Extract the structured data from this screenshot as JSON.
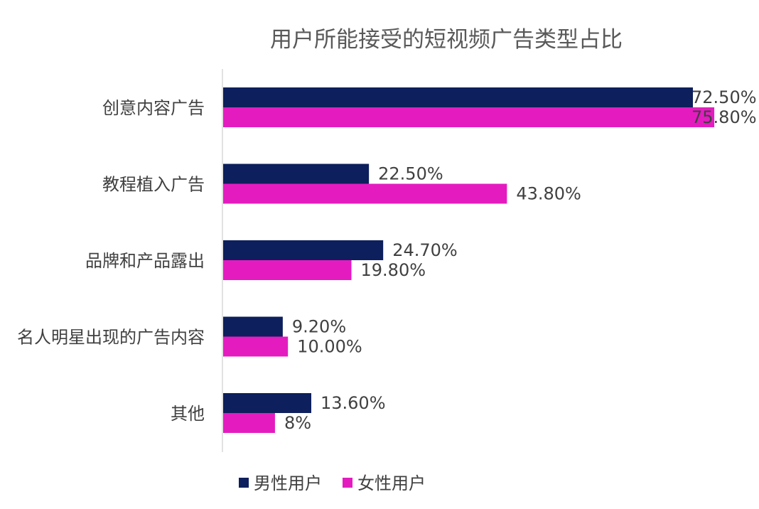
{
  "chart_data": {
    "type": "bar",
    "orientation": "horizontal",
    "title": "用户所能接受的短视频广告类型占比",
    "categories": [
      "创意内容广告",
      "教程植入广告",
      "品牌和产品露出",
      "名人明星出现的广告内容",
      "其他"
    ],
    "series": [
      {
        "name": "男性用户",
        "color": "#0d1f5c",
        "values": [
          72.5,
          22.5,
          24.7,
          9.2,
          13.6
        ],
        "labels": [
          "72.50%",
          "22.50%",
          "24.70%",
          "9.20%",
          "13.60%"
        ]
      },
      {
        "name": "女性用户",
        "color": "#e41cc0",
        "values": [
          75.8,
          43.8,
          19.8,
          10.0,
          8
        ],
        "labels": [
          "75.80%",
          "43.80%",
          "19.80%",
          "10.00%",
          "8%"
        ]
      }
    ],
    "xlim": [
      0,
      80
    ],
    "grid": false,
    "legend_position": "bottom"
  }
}
